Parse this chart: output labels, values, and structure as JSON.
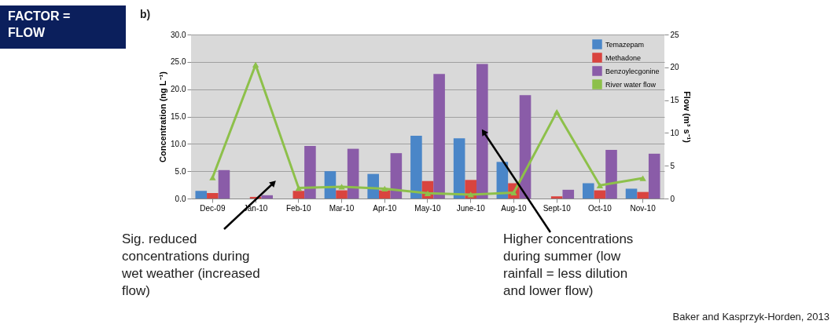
{
  "chart_data": {
    "type": "bar",
    "categories": [
      "Dec-09",
      "Jan-10",
      "Feb-10",
      "Mar-10",
      "Apr-10",
      "May-10",
      "June-10",
      "Aug-10",
      "Sept-10",
      "Oct-10",
      "Nov-10"
    ],
    "series": [
      {
        "name": "Temazepam",
        "color": "#4a86c8",
        "values": [
          1.4,
          null,
          null,
          5.0,
          4.5,
          11.5,
          11.0,
          6.7,
          null,
          2.8,
          1.8
        ]
      },
      {
        "name": "Methadone",
        "color": "#d9443f",
        "values": [
          1.0,
          0.3,
          1.4,
          1.5,
          1.5,
          3.2,
          3.4,
          2.8,
          0.4,
          1.5,
          1.2
        ]
      },
      {
        "name": "Benzoylecgonine",
        "color": "#8a5ca8",
        "values": [
          5.2,
          0.6,
          9.6,
          9.1,
          8.3,
          22.8,
          24.6,
          18.9,
          1.6,
          8.9,
          8.2
        ]
      },
      {
        "name": "River water flow",
        "color": "#8dc04a",
        "type": "line",
        "axis": "y2",
        "values": [
          3.2,
          20.4,
          1.6,
          1.8,
          1.5,
          0.8,
          0.6,
          0.9,
          13.2,
          2.0,
          3.1
        ]
      }
    ],
    "ylabel": "Concentration (ng L⁻¹)",
    "y2label": "Flow (m³ s⁻¹)",
    "ylim": [
      0,
      30
    ],
    "yticks": [
      {
        "value": 0,
        "label": "0.0"
      },
      {
        "value": 5,
        "label": "5.0"
      },
      {
        "value": 10,
        "label": "10.0"
      },
      {
        "value": 15,
        "label": "15.0"
      },
      {
        "value": 20,
        "label": "20.0"
      },
      {
        "value": 25,
        "label": "25.0"
      },
      {
        "value": 30,
        "label": "30.0"
      }
    ],
    "y2lim": [
      0,
      25
    ],
    "y2ticks": [
      0,
      5,
      10,
      15,
      20,
      25
    ],
    "grid": "y",
    "legend": "top right",
    "marker": "triangle",
    "line_style": "solid",
    "annotations": [
      "FACTOR =\nFLOW",
      "b)",
      "Sig. reduced\nconcentrations during\nwet weather (increased\nflow)",
      "Higher concentrations\nduring summer (low\nrainfall = less dilution\nand lower flow)",
      "Baker and Kasprzyk-Horden, 2013"
    ]
  }
}
